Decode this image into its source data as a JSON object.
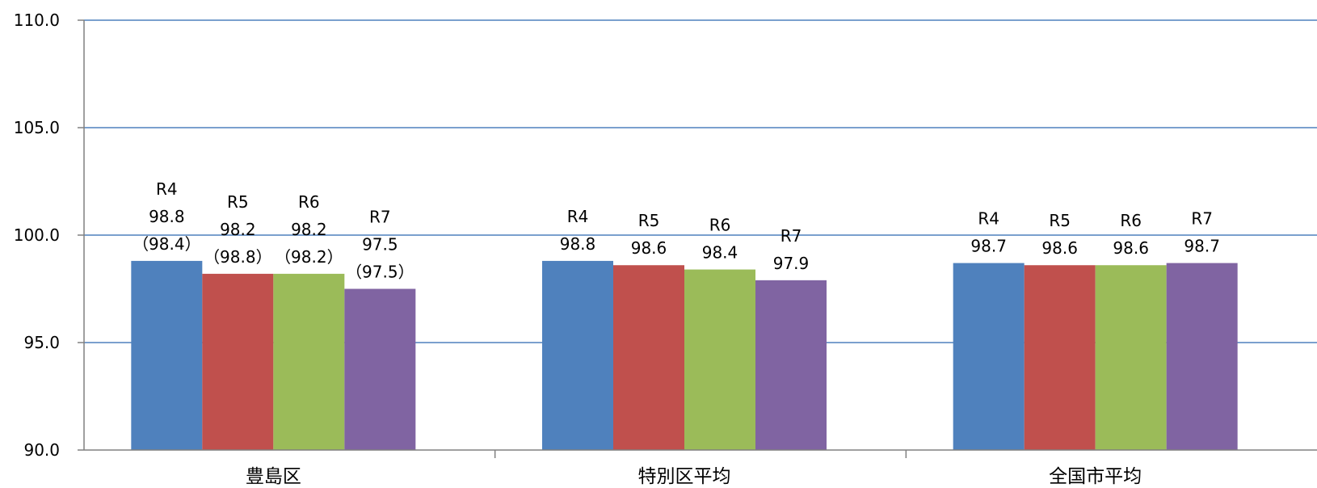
{
  "chart_data": {
    "type": "bar",
    "categories": [
      "豊島区",
      "特別区平均",
      "全国市平均"
    ],
    "series": [
      {
        "name": "R4",
        "color": "#4F81BD",
        "values": [
          98.8,
          98.8,
          98.7
        ]
      },
      {
        "name": "R5",
        "color": "#C0504D",
        "values": [
          98.2,
          98.6,
          98.6
        ]
      },
      {
        "name": "R6",
        "color": "#9BBB59",
        "values": [
          98.2,
          98.4,
          98.6
        ]
      },
      {
        "name": "R7",
        "color": "#8064A2",
        "values": [
          97.5,
          97.9,
          98.7
        ]
      }
    ],
    "data_labels": [
      [
        [
          "R4",
          "98.8",
          "（98.4）"
        ],
        [
          "R5",
          "98.2",
          "（98.8）"
        ],
        [
          "R6",
          "98.2",
          "（98.2）"
        ],
        [
          "R7",
          "97.5",
          "（97.5）"
        ]
      ],
      [
        [
          "R4",
          "98.8"
        ],
        [
          "R5",
          "98.6"
        ],
        [
          "R6",
          "98.4"
        ],
        [
          "R7",
          "97.9"
        ]
      ],
      [
        [
          "R4",
          "98.7"
        ],
        [
          "R5",
          "98.6"
        ],
        [
          "R6",
          "98.6"
        ],
        [
          "R7",
          "98.7"
        ]
      ]
    ],
    "y_ticks": [
      "90.0",
      "95.0",
      "100.0",
      "105.0",
      "110.0"
    ],
    "ylim": [
      90,
      110
    ],
    "grid": true,
    "gridline_color": "#4F81BD",
    "axis_color": "#808080",
    "legend": "none"
  }
}
